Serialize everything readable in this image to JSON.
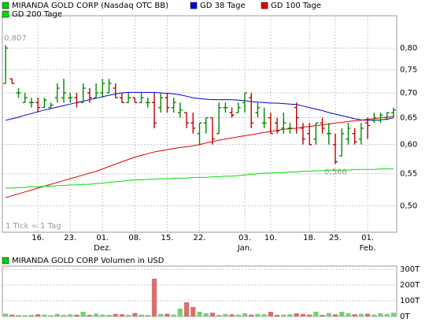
{
  "chart_data": [
    {
      "type": "ohlc",
      "name": "MIRANDA GOLD CORP (Nasdaq OTC BB)",
      "name_color": "#00cc00",
      "up_color": "#008800",
      "down_color": "#bb0000",
      "note": "1 Tick = 1 Tag",
      "high_label": {
        "value": 0.807,
        "label": "0,807"
      },
      "low_label": {
        "value": 0.566,
        "label": "0,566"
      },
      "log_scale": true,
      "grid": true,
      "categories": [
        null,
        null,
        null,
        null,
        null,
        "16.",
        null,
        null,
        null,
        null,
        "23.",
        null,
        null,
        null,
        null,
        "01.",
        null,
        null,
        null,
        null,
        "08.",
        null,
        null,
        null,
        null,
        "15.",
        null,
        null,
        null,
        null,
        "22.",
        null,
        null,
        null,
        null,
        null,
        null,
        "03.",
        null,
        null,
        null,
        "10.",
        null,
        null,
        null,
        null,
        null,
        "18.",
        null,
        null,
        null,
        "25.",
        null,
        null,
        null,
        null,
        "01.",
        null,
        null,
        null,
        null
      ],
      "months": [
        null,
        null,
        null,
        null,
        null,
        null,
        null,
        null,
        null,
        null,
        null,
        null,
        null,
        null,
        null,
        "Dez.",
        null,
        null,
        null,
        null,
        null,
        null,
        null,
        null,
        null,
        null,
        null,
        null,
        null,
        null,
        null,
        null,
        null,
        null,
        null,
        null,
        null,
        "Jan.",
        null,
        null,
        null,
        null,
        null,
        null,
        null,
        null,
        null,
        null,
        null,
        null,
        null,
        null,
        null,
        null,
        null,
        null,
        "Feb.",
        null,
        null,
        null,
        null
      ],
      "open": [
        0.72,
        0.73,
        0.7,
        0.68,
        0.68,
        0.68,
        0.67,
        0.67,
        0.69,
        0.69,
        0.69,
        0.69,
        0.68,
        0.7,
        0.69,
        0.7,
        0.7,
        0.71,
        0.69,
        0.68,
        0.69,
        0.68,
        0.68,
        0.68,
        0.67,
        0.69,
        0.67,
        0.66,
        0.66,
        0.64,
        0.62,
        0.64,
        0.65,
        0.62,
        0.67,
        0.66,
        0.66,
        0.68,
        0.69,
        0.66,
        0.64,
        0.65,
        0.64,
        0.63,
        0.63,
        0.67,
        0.63,
        0.62,
        0.61,
        0.64,
        0.62,
        0.6,
        0.58,
        0.61,
        0.62,
        0.61,
        0.64,
        0.645,
        0.645,
        0.65,
        0.66
      ],
      "high": [
        0.807,
        0.73,
        0.71,
        0.7,
        0.69,
        0.69,
        0.69,
        0.68,
        0.72,
        0.73,
        0.7,
        0.7,
        0.72,
        0.71,
        0.72,
        0.73,
        0.73,
        0.72,
        0.7,
        0.7,
        0.69,
        0.7,
        0.69,
        0.7,
        0.7,
        0.7,
        0.69,
        0.68,
        0.66,
        0.66,
        0.64,
        0.65,
        0.65,
        0.68,
        0.68,
        0.67,
        0.68,
        0.7,
        0.7,
        0.68,
        0.67,
        0.66,
        0.65,
        0.66,
        0.64,
        0.68,
        0.64,
        0.64,
        0.64,
        0.65,
        0.64,
        0.62,
        0.63,
        0.64,
        0.63,
        0.64,
        0.65,
        0.66,
        0.66,
        0.66,
        0.67
      ],
      "low": [
        0.72,
        0.72,
        0.69,
        0.68,
        0.67,
        0.66,
        0.67,
        0.67,
        0.68,
        0.68,
        0.68,
        0.67,
        0.68,
        0.68,
        0.69,
        0.69,
        0.7,
        0.69,
        0.68,
        0.68,
        0.68,
        0.68,
        0.67,
        0.63,
        0.66,
        0.66,
        0.66,
        0.65,
        0.63,
        0.62,
        0.6,
        0.62,
        0.6,
        0.62,
        0.66,
        0.65,
        0.66,
        0.66,
        0.63,
        0.65,
        0.63,
        0.62,
        0.62,
        0.62,
        0.62,
        0.62,
        0.6,
        0.6,
        0.6,
        0.62,
        0.6,
        0.566,
        0.58,
        0.6,
        0.6,
        0.6,
        0.61,
        0.64,
        0.64,
        0.645,
        0.65
      ],
      "close": [
        0.8,
        0.72,
        0.7,
        0.69,
        0.68,
        0.67,
        0.685,
        0.675,
        0.71,
        0.7,
        0.69,
        0.68,
        0.71,
        0.69,
        0.7,
        0.72,
        0.72,
        0.69,
        0.68,
        0.69,
        0.68,
        0.69,
        0.68,
        0.64,
        0.69,
        0.67,
        0.68,
        0.665,
        0.64,
        0.63,
        0.64,
        0.65,
        0.61,
        0.67,
        0.67,
        0.655,
        0.67,
        0.7,
        0.64,
        0.67,
        0.64,
        0.62,
        0.625,
        0.64,
        0.63,
        0.65,
        0.61,
        0.6,
        0.64,
        0.63,
        0.62,
        0.57,
        0.62,
        0.63,
        0.605,
        0.63,
        0.635,
        0.65,
        0.655,
        0.66,
        0.665
      ],
      "series": [
        {
          "name": "GD 38 Tage",
          "color": "#0000dd",
          "values": [
            0.645,
            0.648,
            0.651,
            0.655,
            0.658,
            0.662,
            0.665,
            0.668,
            0.671,
            0.674,
            0.677,
            0.68,
            0.683,
            0.686,
            0.689,
            0.692,
            0.695,
            0.698,
            0.7,
            0.701,
            0.701,
            0.701,
            0.701,
            0.701,
            0.7,
            0.699,
            0.698,
            0.696,
            0.693,
            0.69,
            0.688,
            0.687,
            0.686,
            0.686,
            0.686,
            0.686,
            0.685,
            0.684,
            0.682,
            0.681,
            0.68,
            0.679,
            0.679,
            0.678,
            0.677,
            0.676,
            0.673,
            0.67,
            0.667,
            0.664,
            0.66,
            0.657,
            0.654,
            0.651,
            0.648,
            0.646,
            0.645,
            0.645,
            0.646,
            0.647,
            0.65
          ]
        },
        {
          "name": "GD 100 Tage",
          "color": "#dd0000",
          "values": [
            0.512,
            0.515,
            0.518,
            0.521,
            0.524,
            0.527,
            0.53,
            0.533,
            0.536,
            0.539,
            0.542,
            0.545,
            0.548,
            0.551,
            0.554,
            0.558,
            0.562,
            0.566,
            0.57,
            0.574,
            0.578,
            0.581,
            0.584,
            0.587,
            0.589,
            0.591,
            0.593,
            0.595,
            0.596,
            0.598,
            0.6,
            0.603,
            0.605,
            0.608,
            0.61,
            0.612,
            0.614,
            0.616,
            0.618,
            0.62,
            0.622,
            0.624,
            0.626,
            0.628,
            0.629,
            0.63,
            0.632,
            0.633,
            0.635,
            0.636,
            0.638,
            0.64,
            0.641,
            0.643,
            0.644,
            0.645,
            0.647,
            0.648,
            0.65,
            0.651,
            0.653
          ]
        },
        {
          "name": "GD 200 Tage",
          "color": "#00dd00",
          "values": [
            0.527,
            0.527,
            0.528,
            0.528,
            0.529,
            0.529,
            0.53,
            0.53,
            0.531,
            0.531,
            0.532,
            0.532,
            0.533,
            0.533,
            0.534,
            0.535,
            0.536,
            0.537,
            0.538,
            0.539,
            0.54,
            0.54,
            0.541,
            0.541,
            0.542,
            0.542,
            0.543,
            0.543,
            0.543,
            0.544,
            0.544,
            0.544,
            0.545,
            0.545,
            0.546,
            0.546,
            0.547,
            0.548,
            0.549,
            0.55,
            0.551,
            0.551,
            0.552,
            0.552,
            0.553,
            0.553,
            0.554,
            0.554,
            0.555,
            0.555,
            0.556,
            0.556,
            0.556,
            0.556,
            0.557,
            0.557,
            0.557,
            0.557,
            0.558,
            0.558,
            0.558
          ]
        }
      ],
      "ylim": [
        0.462,
        0.881
      ],
      "yticks": [
        {
          "value": 0.5,
          "label": "0,50"
        },
        {
          "value": 0.55,
          "label": "0,55"
        },
        {
          "value": 0.6,
          "label": "0,60"
        },
        {
          "value": 0.65,
          "label": "0,65"
        },
        {
          "value": 0.7,
          "label": "0,70"
        },
        {
          "value": 0.75,
          "label": "0,75"
        },
        {
          "value": 0.8,
          "label": "0,80"
        }
      ]
    },
    {
      "type": "bar",
      "title": "MIRANDA GOLD CORP Volumen in USD",
      "title_color": "#00cc00",
      "values": [
        18,
        12,
        10,
        8,
        10,
        14,
        12,
        8,
        16,
        10,
        14,
        12,
        30,
        10,
        18,
        12,
        10,
        16,
        14,
        10,
        22,
        12,
        10,
        240,
        16,
        18,
        12,
        50,
        90,
        60,
        30,
        20,
        24,
        10,
        16,
        14,
        12,
        20,
        12,
        16,
        14,
        30,
        10,
        12,
        14,
        20,
        16,
        12,
        30,
        10,
        22,
        14,
        30,
        20,
        14,
        16,
        18,
        12,
        20,
        16,
        24
      ],
      "ylim": [
        0,
        320
      ],
      "yticks": [
        {
          "value": 0,
          "label": "0T"
        },
        {
          "value": 100,
          "label": "100T"
        },
        {
          "value": 200,
          "label": "200T"
        },
        {
          "value": 300,
          "label": "300T"
        }
      ]
    }
  ]
}
